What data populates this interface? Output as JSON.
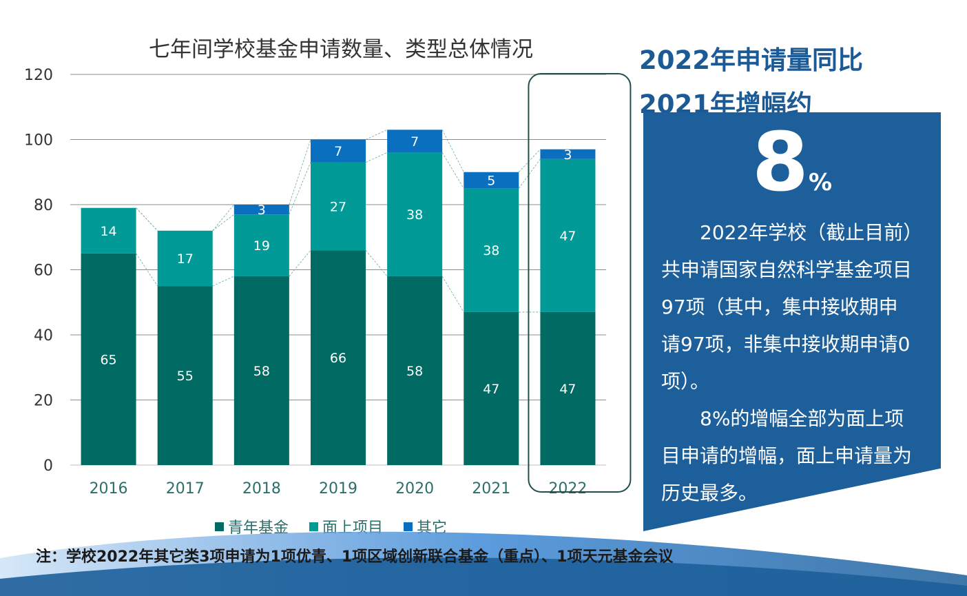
{
  "chart_data": {
    "type": "bar",
    "stacked": true,
    "title": "七年间学校基金申请数量、类型总体情况",
    "categories": [
      "2016",
      "2017",
      "2018",
      "2019",
      "2020",
      "2021",
      "2022"
    ],
    "series": [
      {
        "name": "青年基金",
        "color": "#006a63",
        "values": [
          65,
          55,
          58,
          66,
          58,
          47,
          47
        ]
      },
      {
        "name": "面上项目",
        "color": "#019a96",
        "values": [
          14,
          17,
          19,
          27,
          38,
          38,
          47
        ]
      },
      {
        "name": "其它",
        "color": "#0a6fbf",
        "values": [
          0,
          0,
          3,
          7,
          7,
          5,
          3
        ]
      }
    ],
    "ylim": [
      0,
      120
    ],
    "yticks": [
      0,
      20,
      40,
      60,
      80,
      100,
      120
    ],
    "grid": true,
    "legend": "bottom",
    "highlight_category": "2022"
  },
  "headline": {
    "line1": "2022年申请量同比",
    "line2": "2021年增幅约"
  },
  "big_stat": {
    "number": "8",
    "sign": "%"
  },
  "paragraphs": [
    "2022年学校（截止目前）共申请国家自然科学基金项目97项（其中，集中接收期申请97项，非集中接收期申请0项）。",
    "8%的增幅全部为面上项目申请的增幅，面上申请量为历史最多。"
  ],
  "footnote": "注：学校2022年其它类3项申请为1项优青、1项区域创新联合基金（重点）、1项天元基金会议",
  "colors": {
    "panel": "#1d5f9a",
    "headline": "#1c5a96",
    "axis_text": "#2b6e6a"
  }
}
